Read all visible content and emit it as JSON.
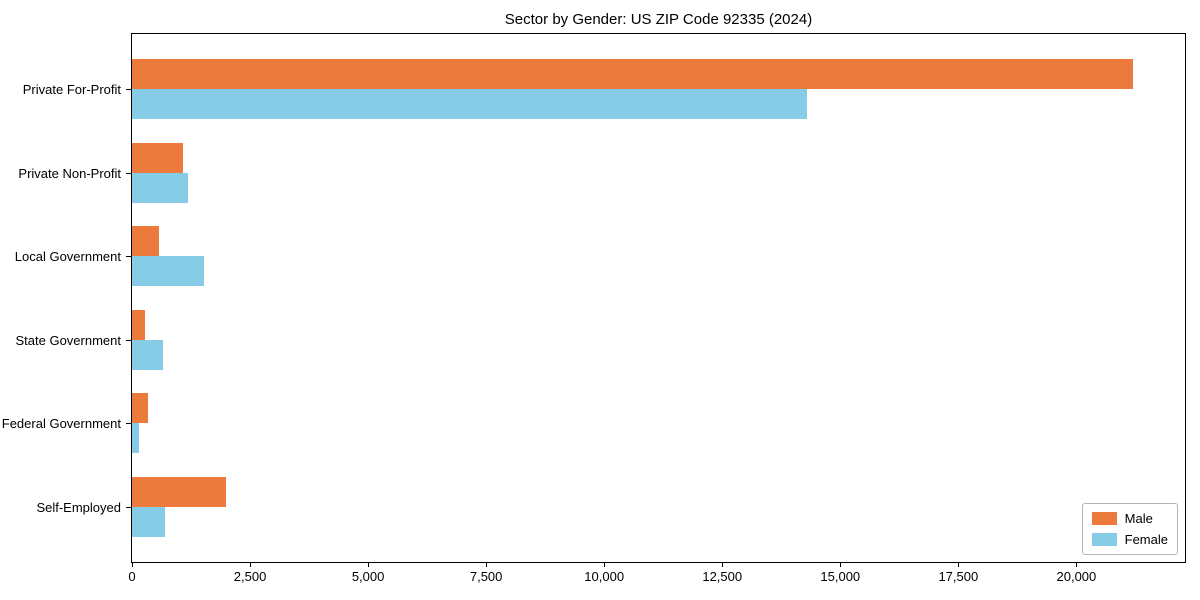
{
  "title": "Sector by Gender: US ZIP Code 92335 (2024)",
  "colors": {
    "male": "#EC7A3C",
    "female": "#86CCE6",
    "axis": "#000000",
    "legend_border": "#b3b3b3",
    "background": "#ffffff"
  },
  "chart_data": {
    "type": "bar",
    "orientation": "horizontal",
    "title": "Sector by Gender: US ZIP Code 92335 (2024)",
    "categories": [
      "Private For-Profit",
      "Private Non-Profit",
      "Local Government",
      "State Government",
      "Federal Government",
      "Self-Employed"
    ],
    "series": [
      {
        "name": "Male",
        "color": "#EC7A3C",
        "values": [
          21200,
          1070,
          580,
          280,
          330,
          2000
        ]
      },
      {
        "name": "Female",
        "color": "#86CCE6",
        "values": [
          14300,
          1180,
          1520,
          660,
          140,
          700
        ]
      }
    ],
    "xlabel": "",
    "ylabel": "",
    "xlim": [
      0,
      22300
    ],
    "xticks": [
      0,
      2500,
      5000,
      7500,
      10000,
      12500,
      15000,
      17500,
      20000
    ],
    "xtick_labels": [
      "0",
      "2,500",
      "5,000",
      "7,500",
      "10,000",
      "12,500",
      "15,000",
      "17,500",
      "20,000"
    ],
    "grid": false,
    "legend": {
      "position": "lower right",
      "entries": [
        "Male",
        "Female"
      ]
    }
  }
}
